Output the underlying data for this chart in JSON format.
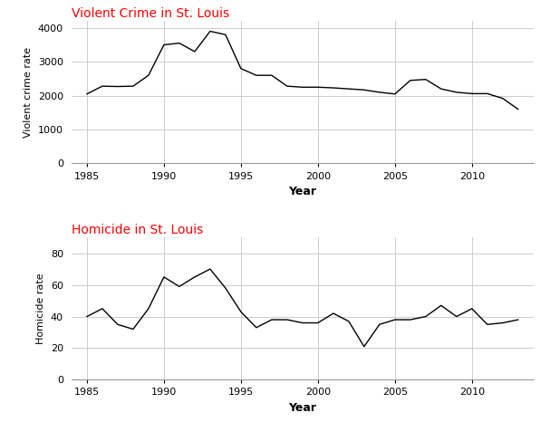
{
  "violent_crime": {
    "title": "Violent Crime in St. Louis",
    "ylabel": "Violent crime rate",
    "xlabel": "Year",
    "years": [
      1985,
      1986,
      1987,
      1988,
      1989,
      1990,
      1991,
      1992,
      1993,
      1994,
      1995,
      1996,
      1997,
      1998,
      1999,
      2000,
      2001,
      2002,
      2003,
      2004,
      2005,
      2006,
      2007,
      2008,
      2009,
      2010,
      2011,
      2012,
      2013
    ],
    "values": [
      2050,
      2280,
      2270,
      2280,
      2600,
      3500,
      3550,
      3300,
      3900,
      3800,
      2800,
      2600,
      2600,
      2280,
      2250,
      2250,
      2230,
      2200,
      2170,
      2100,
      2050,
      2450,
      2480,
      2200,
      2100,
      2060,
      2060,
      1920,
      1600
    ],
    "ylim": [
      0,
      4200
    ],
    "yticks": [
      0,
      1000,
      2000,
      3000,
      4000
    ],
    "xlim": [
      1984,
      2014
    ],
    "xticks": [
      1985,
      1990,
      1995,
      2000,
      2005,
      2010
    ]
  },
  "homicide": {
    "title": "Homicide in St. Louis",
    "ylabel": "Homicide rate",
    "xlabel": "Year",
    "years": [
      1985,
      1986,
      1987,
      1988,
      1989,
      1990,
      1991,
      1992,
      1993,
      1994,
      1995,
      1996,
      1997,
      1998,
      1999,
      2000,
      2001,
      2002,
      2003,
      2004,
      2005,
      2006,
      2007,
      2008,
      2009,
      2010,
      2011,
      2012,
      2013
    ],
    "values": [
      40,
      45,
      35,
      32,
      45,
      65,
      59,
      65,
      70,
      58,
      43,
      33,
      38,
      38,
      36,
      36,
      42,
      37,
      21,
      35,
      38,
      38,
      40,
      47,
      40,
      45,
      35,
      36,
      38
    ],
    "ylim": [
      0,
      90
    ],
    "yticks": [
      0,
      20,
      40,
      60,
      80
    ],
    "xlim": [
      1984,
      2014
    ],
    "xticks": [
      1985,
      1990,
      1995,
      2000,
      2005,
      2010
    ]
  },
  "title_color": "#ff0000",
  "line_color": "#000000",
  "grid_color": "#cccccc",
  "background_color": "#ffffff"
}
